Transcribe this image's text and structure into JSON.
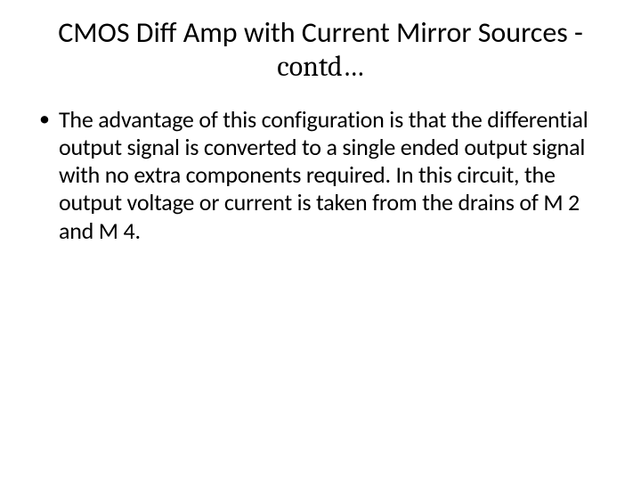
{
  "slide": {
    "title_part1": "CMOS Diff Amp with Current Mirror Sources - ",
    "title_part2": "contd…",
    "bullet_char": "•",
    "body_text": "The advantage of this configuration is that the differential output signal is converted to a single ended output signal with no extra components required. In this circuit, the output voltage or current is taken from the drains of M 2 and M 4.",
    "title_fontsize": 32,
    "body_fontsize": 26,
    "background_color": "#ffffff",
    "text_color": "#000000"
  }
}
